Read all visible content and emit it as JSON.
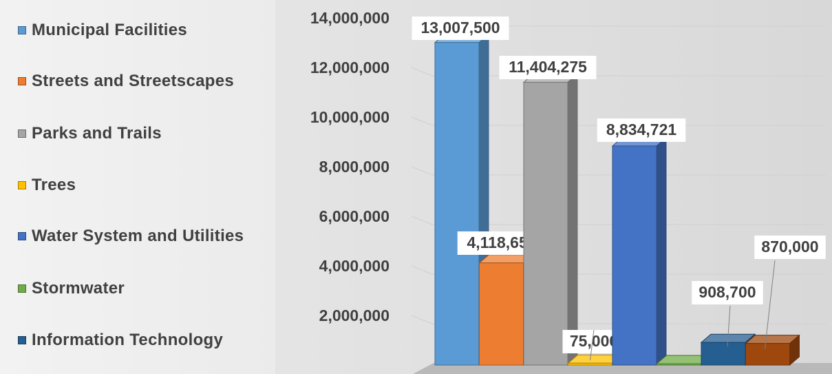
{
  "chart_data": {
    "type": "bar",
    "categories": [
      "Municipal Facilities",
      "Streets and Streetscapes",
      "Parks and Trails",
      "Trees",
      "Water System and Utilities",
      "Stormwater",
      "Information Technology",
      ""
    ],
    "values": [
      13007500,
      4118652,
      11404275,
      75000,
      8834721,
      0,
      908700,
      870000
    ],
    "data_labels": [
      "13,007,500",
      "4,118,652",
      "11,404,275",
      "75,000",
      "8,834,721",
      "",
      "908,700",
      "870,000"
    ],
    "colors": [
      "#5b9bd5",
      "#ed7d31",
      "#a5a5a5",
      "#ffc000",
      "#4472c4",
      "#70ad47",
      "#255e91",
      "#9e480e"
    ],
    "ylim": [
      0,
      14000000
    ],
    "y_ticks": [
      "14,000,000",
      "12,000,000",
      "10,000,000",
      "8,000,000",
      "6,000,000",
      "4,000,000",
      "2,000,000"
    ],
    "grid": true,
    "legend_position": "left",
    "title": "",
    "xlabel": "",
    "ylabel": ""
  },
  "legend": {
    "items": [
      {
        "label": "Municipal Facilities",
        "color": "#5b9bd5"
      },
      {
        "label": "Streets and Streetscapes",
        "color": "#ed7d31"
      },
      {
        "label": "Parks and Trails",
        "color": "#a5a5a5"
      },
      {
        "label": "Trees",
        "color": "#ffc000"
      },
      {
        "label": "Water System and Utilities",
        "color": "#4472c4"
      },
      {
        "label": "Stormwater",
        "color": "#70ad47"
      },
      {
        "label": "Information Technology",
        "color": "#255e91"
      }
    ]
  }
}
